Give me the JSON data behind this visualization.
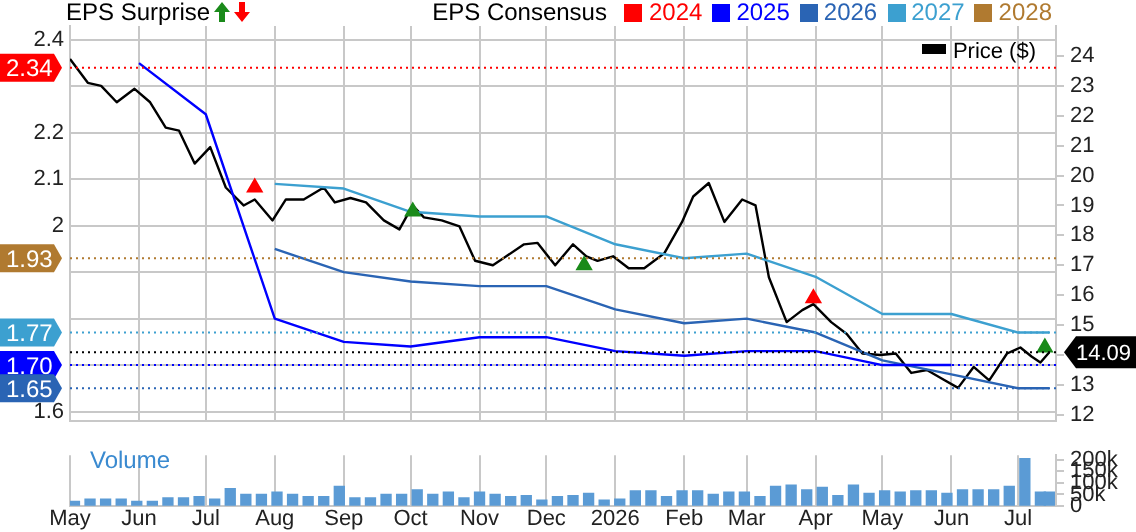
{
  "chart_data": [
    {
      "type": "line",
      "legend": "top",
      "legend_title": "EPS Consensus",
      "annotations": [
        "EPS Surprise"
      ],
      "ref_lines": [
        {
          "axis": "y",
          "value": 2.34,
          "label": "2.34",
          "color": "#ff0000",
          "line_style": "dotted"
        },
        {
          "axis": "y",
          "value": 1.93,
          "label": "1.93",
          "color": "#b07a30",
          "line_style": "dotted"
        },
        {
          "axis": "y",
          "value": 1.77,
          "label": "1.77",
          "color": "#3ca0d0",
          "line_style": "dotted"
        },
        {
          "axis": "y",
          "value": 1.7,
          "label": "1.70",
          "color": "#0000ff",
          "line_style": "dotted"
        },
        {
          "axis": "y",
          "value": 1.65,
          "label": "1.65",
          "color": "#2a64b4",
          "line_style": "dotted"
        },
        {
          "axis": "y2",
          "value": 14.09,
          "label": "14.09",
          "color": "#000000",
          "line_style": "dotted"
        }
      ],
      "grid": true,
      "tick_labels": "y",
      "marker": "none",
      "xlim": [
        "2025-05-01",
        "2026-07-18"
      ],
      "xticks": [
        "2025-05-01",
        "2025-06-01",
        "2025-07-01",
        "2025-08-01",
        "2025-09-01",
        "2025-10-01",
        "2025-11-01",
        "2025-12-01",
        "2026-01-01",
        "2026-02-01",
        "2026-03-01",
        "2026-04-01",
        "2026-05-01",
        "2026-06-01",
        "2026-07-01"
      ],
      "ylim": [
        1.58,
        2.43
      ],
      "yticks": [
        1.6,
        {
          "value": 1.7,
          "label": null
        },
        {
          "value": 1.8,
          "label": null
        },
        {
          "value": 1.9,
          "label": null
        },
        2,
        2.1,
        2.2,
        {
          "value": 2.3,
          "label": null
        },
        2.4
      ],
      "y2lim": [
        11.8,
        25.0
      ],
      "y2ticks": [
        12,
        13,
        {
          "value": 14,
          "label": null
        },
        15,
        16,
        17,
        18,
        19,
        20,
        21,
        22,
        23,
        24
      ],
      "series": [
        {
          "name": "2024",
          "color": "#ff0000"
        },
        {
          "name": "2025",
          "color": "#0000ff",
          "x": [
            "2025-06-01",
            "2025-07-01",
            "2025-08-01",
            "2025-09-01",
            "2025-10-01",
            "2025-11-01",
            "2025-12-01",
            "2026-01-01",
            "2026-02-01",
            "2026-03-01",
            "2026-04-01",
            "2026-05-01",
            "2026-06-01"
          ],
          "values": [
            2.35,
            2.24,
            1.8,
            1.75,
            1.74,
            1.76,
            1.76,
            1.73,
            1.72,
            1.73,
            1.73,
            1.7,
            1.7
          ]
        },
        {
          "name": "2026",
          "color": "#2a64b4",
          "x": [
            "2025-08-01",
            "2025-09-01",
            "2025-10-01",
            "2025-11-01",
            "2025-12-01",
            "2026-01-01",
            "2026-02-01",
            "2026-03-01",
            "2026-04-01",
            "2026-05-01",
            "2026-06-01",
            "2026-07-01",
            "2026-07-15"
          ],
          "values": [
            1.95,
            1.9,
            1.88,
            1.87,
            1.87,
            1.82,
            1.79,
            1.8,
            1.77,
            1.71,
            1.68,
            1.65,
            1.65
          ]
        },
        {
          "name": "2027",
          "color": "#3ca0d0",
          "x": [
            "2025-08-01",
            "2025-09-01",
            "2025-10-01",
            "2025-11-01",
            "2025-12-01",
            "2026-01-01",
            "2026-02-01",
            "2026-03-01",
            "2026-04-01",
            "2026-05-01",
            "2026-06-01",
            "2026-07-01",
            "2026-07-15"
          ],
          "values": [
            2.09,
            2.08,
            2.03,
            2.02,
            2.02,
            1.96,
            1.93,
            1.94,
            1.89,
            1.81,
            1.81,
            1.77,
            1.77
          ]
        },
        {
          "name": "2028",
          "color": "#b07a30"
        },
        {
          "name": "Price ($)",
          "color": "#000000",
          "axis": "y2",
          "x": [
            "2025-05-01",
            "2025-05-09",
            "2025-05-15",
            "2025-05-22",
            "2025-05-30",
            "2025-06-06",
            "2025-06-13",
            "2025-06-19",
            "2025-06-26",
            "2025-07-03",
            "2025-07-10",
            "2025-07-18",
            "2025-07-23",
            "2025-07-31",
            "2025-08-06",
            "2025-08-14",
            "2025-08-23",
            "2025-08-28",
            "2025-09-04",
            "2025-09-11",
            "2025-09-19",
            "2025-09-26",
            "2025-10-02",
            "2025-10-07",
            "2025-10-15",
            "2025-10-23",
            "2025-10-30",
            "2025-11-07",
            "2025-11-14",
            "2025-11-21",
            "2025-11-27",
            "2025-12-05",
            "2025-12-13",
            "2025-12-19",
            "2025-12-24",
            "2025-12-31",
            "2026-01-07",
            "2026-01-14",
            "2026-01-23",
            "2026-01-31",
            "2026-02-05",
            "2026-02-12",
            "2026-02-19",
            "2026-02-27",
            "2026-03-05",
            "2026-03-11",
            "2026-03-19",
            "2026-03-26",
            "2026-03-31",
            "2026-04-08",
            "2026-04-15",
            "2026-04-22",
            "2026-04-30",
            "2026-05-07",
            "2026-05-14",
            "2026-05-21",
            "2026-05-28",
            "2026-06-04",
            "2026-06-11",
            "2026-06-18",
            "2026-06-26",
            "2026-07-02",
            "2026-07-07",
            "2026-07-11",
            "2026-07-15"
          ],
          "values": [
            23.9,
            23.1,
            23.0,
            22.45,
            22.9,
            22.45,
            21.6,
            21.5,
            20.4,
            20.95,
            19.6,
            19.0,
            19.2,
            18.5,
            19.2,
            19.2,
            19.6,
            19.1,
            19.25,
            19.1,
            18.5,
            18.2,
            19.0,
            18.6,
            18.5,
            18.3,
            17.15,
            17.0,
            17.35,
            17.7,
            17.75,
            17.0,
            17.7,
            17.3,
            17.15,
            17.3,
            16.9,
            16.9,
            17.4,
            18.45,
            19.3,
            19.75,
            18.45,
            19.2,
            19.0,
            16.6,
            15.1,
            15.5,
            15.7,
            15.1,
            14.7,
            14.05,
            14.0,
            14.05,
            13.4,
            13.5,
            13.2,
            12.9,
            13.6,
            13.15,
            14.05,
            14.25,
            13.95,
            13.75,
            14.09
          ]
        },
        {
          "type": "scatter",
          "axis": "y2",
          "marker": "triangle",
          "x": [
            "2025-07-23",
            "2025-10-02",
            "2025-12-18",
            "2026-03-31",
            "2026-07-13"
          ],
          "values": [
            19.6,
            18.8,
            17.0,
            15.9,
            14.25
          ],
          "colors": [
            "#ff0000",
            "#1a8a1a",
            "#1a8a1a",
            "#ff0000",
            "#1a8a1a"
          ]
        }
      ]
    },
    {
      "type": "bar",
      "y2label": "Volume",
      "grid": "x",
      "xlim": [
        "2025-05-01",
        "2026-07-18"
      ],
      "xticks": [
        {
          "value": "2025-05-01",
          "label": "May"
        },
        {
          "value": "2025-06-01",
          "label": "Jun"
        },
        {
          "value": "2025-07-01",
          "label": "Jul"
        },
        {
          "value": "2025-08-01",
          "label": "Aug"
        },
        {
          "value": "2025-09-01",
          "label": "Sep"
        },
        {
          "value": "2025-10-01",
          "label": "Oct"
        },
        {
          "value": "2025-11-01",
          "label": "Nov"
        },
        {
          "value": "2025-12-01",
          "label": "Dec"
        },
        {
          "value": "2026-01-01",
          "label": "2026"
        },
        {
          "value": "2026-02-01",
          "label": "Feb"
        },
        {
          "value": "2026-03-01",
          "label": "Mar"
        },
        {
          "value": "2026-04-01",
          "label": "Apr"
        },
        {
          "value": "2026-05-01",
          "label": "May"
        },
        {
          "value": "2026-06-01",
          "label": "Jun"
        },
        {
          "value": "2026-07-01",
          "label": "Jul"
        }
      ],
      "y2lim": [
        0,
        220000
      ],
      "y2ticks": [
        0,
        {
          "value": 50000,
          "label": "50k"
        },
        {
          "value": 100000,
          "label": "100k"
        },
        {
          "value": 150000,
          "label": "150k"
        },
        {
          "value": 200000,
          "label": "200k"
        }
      ],
      "x": [
        "2025-05-03",
        "2025-05-10",
        "2025-05-17",
        "2025-05-24",
        "2025-05-31",
        "2025-06-07",
        "2025-06-14",
        "2025-06-21",
        "2025-06-28",
        "2025-07-05",
        "2025-07-12",
        "2025-07-19",
        "2025-07-26",
        "2025-08-02",
        "2025-08-09",
        "2025-08-16",
        "2025-08-23",
        "2025-08-30",
        "2025-09-06",
        "2025-09-13",
        "2025-09-20",
        "2025-09-27",
        "2025-10-04",
        "2025-10-11",
        "2025-10-18",
        "2025-10-25",
        "2025-11-01",
        "2025-11-08",
        "2025-11-15",
        "2025-11-22",
        "2025-11-29",
        "2025-12-06",
        "2025-12-13",
        "2025-12-20",
        "2025-12-27",
        "2026-01-03",
        "2026-01-10",
        "2026-01-17",
        "2026-01-24",
        "2026-01-31",
        "2026-02-07",
        "2026-02-14",
        "2026-02-21",
        "2026-02-28",
        "2026-03-07",
        "2026-03-14",
        "2026-03-21",
        "2026-03-28",
        "2026-04-04",
        "2026-04-11",
        "2026-04-18",
        "2026-04-25",
        "2026-05-02",
        "2026-05-09",
        "2026-05-16",
        "2026-05-23",
        "2026-05-30",
        "2026-06-06",
        "2026-06-13",
        "2026-06-20",
        "2026-06-27",
        "2026-07-04",
        "2026-07-11",
        "2026-07-15"
      ],
      "series": [
        {
          "color": "#5b9bd5",
          "axis": "y2",
          "values": [
            20000,
            30000,
            30000,
            30000,
            20000,
            20000,
            35000,
            35000,
            40000,
            30000,
            75000,
            50000,
            50000,
            60000,
            50000,
            40000,
            40000,
            85000,
            35000,
            35000,
            50000,
            50000,
            70000,
            50000,
            60000,
            35000,
            60000,
            50000,
            40000,
            45000,
            25000,
            40000,
            45000,
            55000,
            25000,
            30000,
            65000,
            65000,
            40000,
            65000,
            65000,
            50000,
            60000,
            60000,
            40000,
            85000,
            90000,
            70000,
            80000,
            45000,
            90000,
            55000,
            65000,
            60000,
            65000,
            65000,
            55000,
            70000,
            70000,
            70000,
            85000,
            205000,
            60000,
            60000
          ]
        }
      ]
    }
  ]
}
